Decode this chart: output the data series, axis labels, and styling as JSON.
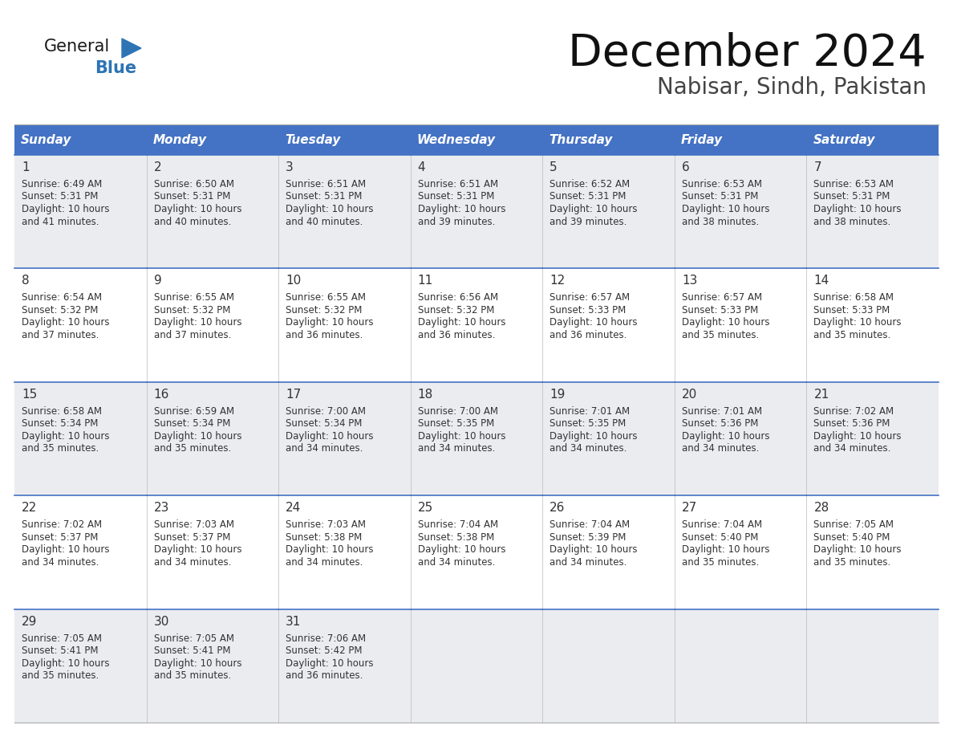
{
  "title": "December 2024",
  "subtitle": "Nabisar, Sindh, Pakistan",
  "header_color": "#4472C4",
  "header_text_color": "#FFFFFF",
  "row_odd_color": "#EAECF0",
  "row_even_color": "#FFFFFF",
  "text_color": "#333333",
  "days_of_week": [
    "Sunday",
    "Monday",
    "Tuesday",
    "Wednesday",
    "Thursday",
    "Friday",
    "Saturday"
  ],
  "calendar": [
    [
      {
        "day": 1,
        "sunrise": "6:49 AM",
        "sunset": "5:31 PM",
        "daylight_h": "10 hours",
        "daylight_m": "and 41 minutes."
      },
      {
        "day": 2,
        "sunrise": "6:50 AM",
        "sunset": "5:31 PM",
        "daylight_h": "10 hours",
        "daylight_m": "and 40 minutes."
      },
      {
        "day": 3,
        "sunrise": "6:51 AM",
        "sunset": "5:31 PM",
        "daylight_h": "10 hours",
        "daylight_m": "and 40 minutes."
      },
      {
        "day": 4,
        "sunrise": "6:51 AM",
        "sunset": "5:31 PM",
        "daylight_h": "10 hours",
        "daylight_m": "and 39 minutes."
      },
      {
        "day": 5,
        "sunrise": "6:52 AM",
        "sunset": "5:31 PM",
        "daylight_h": "10 hours",
        "daylight_m": "and 39 minutes."
      },
      {
        "day": 6,
        "sunrise": "6:53 AM",
        "sunset": "5:31 PM",
        "daylight_h": "10 hours",
        "daylight_m": "and 38 minutes."
      },
      {
        "day": 7,
        "sunrise": "6:53 AM",
        "sunset": "5:31 PM",
        "daylight_h": "10 hours",
        "daylight_m": "and 38 minutes."
      }
    ],
    [
      {
        "day": 8,
        "sunrise": "6:54 AM",
        "sunset": "5:32 PM",
        "daylight_h": "10 hours",
        "daylight_m": "and 37 minutes."
      },
      {
        "day": 9,
        "sunrise": "6:55 AM",
        "sunset": "5:32 PM",
        "daylight_h": "10 hours",
        "daylight_m": "and 37 minutes."
      },
      {
        "day": 10,
        "sunrise": "6:55 AM",
        "sunset": "5:32 PM",
        "daylight_h": "10 hours",
        "daylight_m": "and 36 minutes."
      },
      {
        "day": 11,
        "sunrise": "6:56 AM",
        "sunset": "5:32 PM",
        "daylight_h": "10 hours",
        "daylight_m": "and 36 minutes."
      },
      {
        "day": 12,
        "sunrise": "6:57 AM",
        "sunset": "5:33 PM",
        "daylight_h": "10 hours",
        "daylight_m": "and 36 minutes."
      },
      {
        "day": 13,
        "sunrise": "6:57 AM",
        "sunset": "5:33 PM",
        "daylight_h": "10 hours",
        "daylight_m": "and 35 minutes."
      },
      {
        "day": 14,
        "sunrise": "6:58 AM",
        "sunset": "5:33 PM",
        "daylight_h": "10 hours",
        "daylight_m": "and 35 minutes."
      }
    ],
    [
      {
        "day": 15,
        "sunrise": "6:58 AM",
        "sunset": "5:34 PM",
        "daylight_h": "10 hours",
        "daylight_m": "and 35 minutes."
      },
      {
        "day": 16,
        "sunrise": "6:59 AM",
        "sunset": "5:34 PM",
        "daylight_h": "10 hours",
        "daylight_m": "and 35 minutes."
      },
      {
        "day": 17,
        "sunrise": "7:00 AM",
        "sunset": "5:34 PM",
        "daylight_h": "10 hours",
        "daylight_m": "and 34 minutes."
      },
      {
        "day": 18,
        "sunrise": "7:00 AM",
        "sunset": "5:35 PM",
        "daylight_h": "10 hours",
        "daylight_m": "and 34 minutes."
      },
      {
        "day": 19,
        "sunrise": "7:01 AM",
        "sunset": "5:35 PM",
        "daylight_h": "10 hours",
        "daylight_m": "and 34 minutes."
      },
      {
        "day": 20,
        "sunrise": "7:01 AM",
        "sunset": "5:36 PM",
        "daylight_h": "10 hours",
        "daylight_m": "and 34 minutes."
      },
      {
        "day": 21,
        "sunrise": "7:02 AM",
        "sunset": "5:36 PM",
        "daylight_h": "10 hours",
        "daylight_m": "and 34 minutes."
      }
    ],
    [
      {
        "day": 22,
        "sunrise": "7:02 AM",
        "sunset": "5:37 PM",
        "daylight_h": "10 hours",
        "daylight_m": "and 34 minutes."
      },
      {
        "day": 23,
        "sunrise": "7:03 AM",
        "sunset": "5:37 PM",
        "daylight_h": "10 hours",
        "daylight_m": "and 34 minutes."
      },
      {
        "day": 24,
        "sunrise": "7:03 AM",
        "sunset": "5:38 PM",
        "daylight_h": "10 hours",
        "daylight_m": "and 34 minutes."
      },
      {
        "day": 25,
        "sunrise": "7:04 AM",
        "sunset": "5:38 PM",
        "daylight_h": "10 hours",
        "daylight_m": "and 34 minutes."
      },
      {
        "day": 26,
        "sunrise": "7:04 AM",
        "sunset": "5:39 PM",
        "daylight_h": "10 hours",
        "daylight_m": "and 34 minutes."
      },
      {
        "day": 27,
        "sunrise": "7:04 AM",
        "sunset": "5:40 PM",
        "daylight_h": "10 hours",
        "daylight_m": "and 35 minutes."
      },
      {
        "day": 28,
        "sunrise": "7:05 AM",
        "sunset": "5:40 PM",
        "daylight_h": "10 hours",
        "daylight_m": "and 35 minutes."
      }
    ],
    [
      {
        "day": 29,
        "sunrise": "7:05 AM",
        "sunset": "5:41 PM",
        "daylight_h": "10 hours",
        "daylight_m": "and 35 minutes."
      },
      {
        "day": 30,
        "sunrise": "7:05 AM",
        "sunset": "5:41 PM",
        "daylight_h": "10 hours",
        "daylight_m": "and 35 minutes."
      },
      {
        "day": 31,
        "sunrise": "7:06 AM",
        "sunset": "5:42 PM",
        "daylight_h": "10 hours",
        "daylight_m": "and 36 minutes."
      },
      null,
      null,
      null,
      null
    ]
  ]
}
